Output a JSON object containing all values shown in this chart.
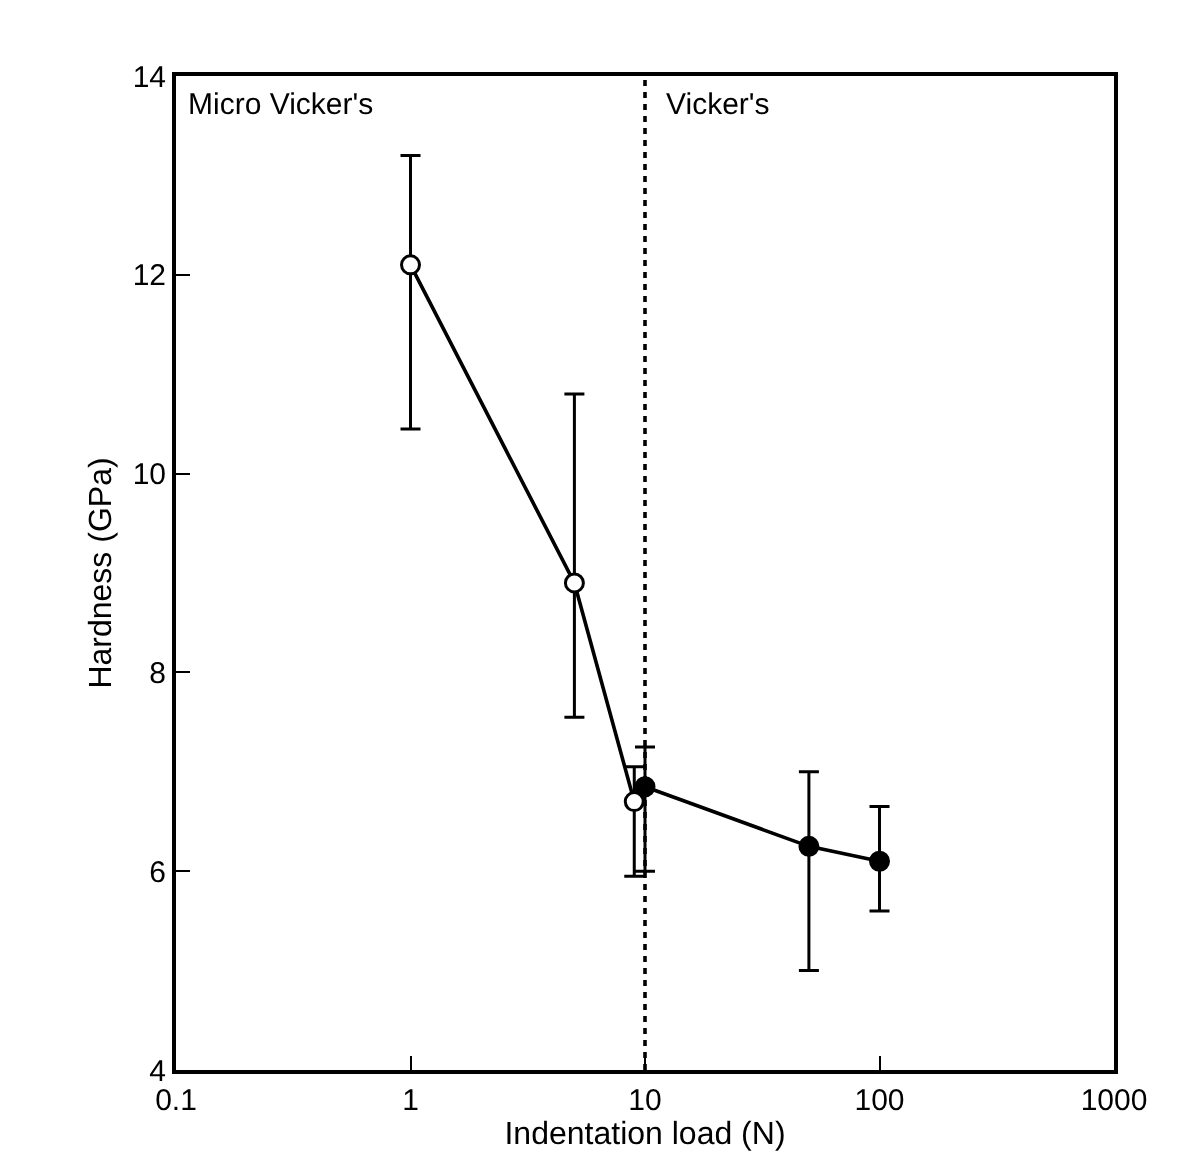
{
  "chart_data": {
    "type": "line",
    "xlabel": "Indentation load (N)",
    "ylabel": "Hardness (GPa)",
    "log": "x",
    "xlim": [
      0.1,
      1000
    ],
    "xticks": [
      0.1,
      1,
      10,
      100,
      1000
    ],
    "ylim": [
      4,
      14
    ],
    "yticks": [
      4,
      6,
      8,
      10,
      12,
      14
    ],
    "line_style": "solid",
    "series": [
      {
        "color": "#000000",
        "marker": "circle-open",
        "x": [
          1,
          5,
          9
        ],
        "values": [
          12.1,
          8.9,
          6.7
        ],
        "errors": [
          [
            10.45,
            13.2
          ],
          [
            7.55,
            10.8
          ],
          [
            5.95,
            7.05
          ]
        ]
      },
      {
        "color": "#000000",
        "marker": "circle",
        "x": [
          10,
          50,
          100
        ],
        "values": [
          6.85,
          6.25,
          6.1
        ],
        "errors": [
          [
            6.0,
            7.25
          ],
          [
            5.0,
            7.0
          ],
          [
            5.6,
            6.65
          ]
        ]
      }
    ],
    "ref_lines": [
      {
        "axis": "x",
        "value": 10,
        "line_style": "dotted"
      }
    ],
    "annotations": [
      "Micro Vicker's",
      "Vicker's"
    ]
  }
}
